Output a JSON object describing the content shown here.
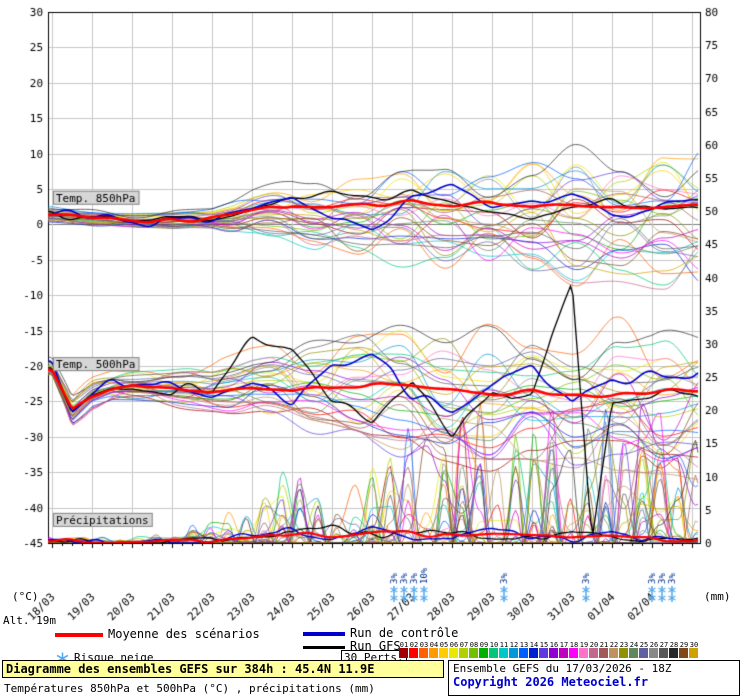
{
  "labels": {
    "unit_left": "(°C)",
    "unit_right": "(mm)",
    "altitude": "Alt. 19m"
  },
  "legend": {
    "mean_label": "Moyenne des scénarios",
    "mean_color": "#ff0000",
    "control_label": "Run de contrôle",
    "control_color": "#0000cc",
    "gfs_label": "Run GFS",
    "gfs_color": "#000000",
    "perts_label": "30 Perts.",
    "snow_label": "Risque neige",
    "snow_color": "#55aaee",
    "pert_numbers": [
      "01",
      "02",
      "03",
      "04",
      "05",
      "06",
      "07",
      "08",
      "09",
      "10",
      "11",
      "12",
      "13",
      "14",
      "15",
      "16",
      "17",
      "18",
      "19",
      "20",
      "21",
      "22",
      "23",
      "24",
      "25",
      "26",
      "27",
      "28",
      "29",
      "30"
    ],
    "pert_colors": [
      "#a00000",
      "#ff0000",
      "#ff6000",
      "#ff9900",
      "#ffcc00",
      "#e8e800",
      "#b0d000",
      "#70c000",
      "#00b000",
      "#00c878",
      "#00c8c8",
      "#0098d8",
      "#0060ff",
      "#0020d0",
      "#6038e0",
      "#9000d0",
      "#c000c0",
      "#ff00ff",
      "#ff70c8",
      "#c06890",
      "#a05858",
      "#c09060",
      "#909000",
      "#608860",
      "#6060a0",
      "#888888",
      "#585858",
      "#282828",
      "#804818",
      "#d0a000"
    ]
  },
  "footer": {
    "title": "Diagramme des ensembles GEFS sur 384h : 45.4N 11.9E",
    "subtitle": "Températures 850hPa et 500hPa (°C) , précipitations (mm)",
    "run_info": "Ensemble GEFS du 17/03/2026 - 18Z",
    "copyright": "Copyright 2026 Meteociel.fr"
  },
  "chart_data": {
    "type": "line",
    "title": "Diagramme des ensembles GEFS sur 384h : 45.4N 11.9E",
    "x_dates": [
      "18/03",
      "19/03",
      "20/03",
      "21/03",
      "22/03",
      "23/03",
      "24/03",
      "25/03",
      "26/03",
      "27/03",
      "28/03",
      "29/03",
      "30/03",
      "31/03",
      "01/04",
      "02/04"
    ],
    "x_span_hours": 384,
    "y_left": {
      "unit": "°C",
      "ticks": [
        30,
        25,
        20,
        15,
        10,
        5,
        0,
        -5,
        -10,
        -15,
        -20,
        -25,
        -30,
        -35,
        -40,
        -45
      ]
    },
    "y_right": {
      "unit": "mm",
      "ticks": [
        80,
        75,
        70,
        65,
        60,
        55,
        50,
        45,
        40,
        35,
        30,
        25,
        20,
        15,
        10,
        5,
        0
      ]
    },
    "annotations": [
      "Temp. 850hPa",
      "Temp. 500hPa",
      "Précipitations"
    ],
    "n_members": 30,
    "sampling": "values every 12h from 18/03 00h to 03/04 00h (33 anchor points)",
    "series": {
      "t850": {
        "mean": [
          1.5,
          1.2,
          0.8,
          0.9,
          0.6,
          0.4,
          0.5,
          0.7,
          0.8,
          1.2,
          1.8,
          2.4,
          2.8,
          2.4,
          2.2,
          2.6,
          2.8,
          3.0,
          3.2,
          2.8,
          2.6,
          2.8,
          3.0,
          2.8,
          2.6,
          2.8,
          3.0,
          2.6,
          2.4,
          2.2,
          2.2,
          2.4,
          2.6
        ],
        "control": [
          1.6,
          1.3,
          1.0,
          0.6,
          0.4,
          0.3,
          0.4,
          0.8,
          1.0,
          1.6,
          2.2,
          3.2,
          4.0,
          2.6,
          1.2,
          0.2,
          -0.8,
          1.4,
          3.6,
          4.4,
          5.0,
          3.6,
          2.2,
          2.6,
          3.2,
          3.8,
          4.4,
          2.8,
          1.2,
          1.6,
          2.2,
          2.6,
          3.0
        ],
        "gfs": [
          1.4,
          1.0,
          0.7,
          0.6,
          0.5,
          0.6,
          0.6,
          0.8,
          0.9,
          1.6,
          2.4,
          2.8,
          3.2,
          3.8,
          4.2,
          3.8,
          3.4,
          4.0,
          4.6,
          3.6,
          2.8,
          2.4,
          2.0,
          1.6,
          1.2,
          1.8,
          2.4,
          2.8,
          3.2,
          2.6,
          2.0,
          2.2,
          2.4
        ],
        "env_min": [
          0.5,
          0.2,
          -0.2,
          -0.4,
          -0.5,
          -0.7,
          -0.8,
          -0.6,
          -0.5,
          -1.0,
          -1.5,
          -2.0,
          -2.5,
          -3.0,
          -3.5,
          -4.0,
          -4.5,
          -4.8,
          -5.0,
          -5.2,
          -5.5,
          -5.8,
          -6.0,
          -6.2,
          -6.5,
          -6.8,
          -7.0,
          -7.2,
          -7.5,
          -7.8,
          -8.0,
          -8.0,
          -8.0
        ],
        "env_max": [
          2.5,
          2.2,
          2.0,
          1.8,
          1.6,
          1.7,
          1.8,
          2.0,
          2.2,
          3.2,
          4.5,
          5.2,
          6.0,
          6.2,
          6.5,
          6.8,
          7.0,
          7.5,
          8.0,
          8.2,
          8.5,
          8.8,
          9.0,
          9.2,
          9.5,
          9.8,
          10.0,
          10.0,
          10.0,
          10.2,
          10.5,
          10.2,
          10.0
        ]
      },
      "t500": {
        "mean": [
          -20.5,
          -26.0,
          -24.0,
          -23.0,
          -22.5,
          -22.8,
          -23.0,
          -23.2,
          -23.5,
          -23.2,
          -23.0,
          -23.2,
          -23.5,
          -23.2,
          -23.0,
          -22.8,
          -22.5,
          -22.8,
          -23.0,
          -23.2,
          -23.5,
          -23.8,
          -24.0,
          -23.8,
          -23.5,
          -23.8,
          -24.0,
          -24.0,
          -24.0,
          -23.8,
          -23.5,
          -23.5,
          -23.5
        ],
        "control": [
          -20.0,
          -26.5,
          -24.0,
          -22.5,
          -22.0,
          -22.5,
          -23.0,
          -23.5,
          -24.0,
          -23.0,
          -22.0,
          -23.5,
          -25.0,
          -22.5,
          -20.0,
          -19.2,
          -18.5,
          -21.0,
          -24.0,
          -25.0,
          -26.0,
          -24.0,
          -22.0,
          -21.0,
          -20.0,
          -22.5,
          -25.0,
          -23.5,
          -22.0,
          -21.5,
          -21.0,
          -21.0,
          -21.0
        ],
        "gfs": [
          -20.2,
          -26.2,
          -24.2,
          -23.0,
          -22.8,
          -23.0,
          -23.4,
          -23.2,
          -23.0,
          -19.5,
          -16.5,
          -17.2,
          -18.0,
          -21.5,
          -25.0,
          -26.5,
          -28.0,
          -25.0,
          -22.0,
          -26.0,
          -30.0,
          -27.0,
          -24.0,
          -25.0,
          -24.0,
          -15.0,
          -8.0,
          -44.0,
          -25.0,
          -24.5,
          -24.0,
          -24.0,
          -24.0
        ],
        "env_min": [
          -21.5,
          -29.0,
          -26.0,
          -25.0,
          -25.0,
          -25.2,
          -25.5,
          -26.0,
          -26.5,
          -27.0,
          -27.5,
          -28.0,
          -28.5,
          -29.2,
          -30.0,
          -31.0,
          -32.0,
          -32.2,
          -32.5,
          -33.0,
          -33.5,
          -33.8,
          -34.0,
          -34.2,
          -34.5,
          -34.8,
          -35.0,
          -35.0,
          -35.0,
          -35.0,
          -35.0,
          -35.0,
          -35.0
        ],
        "env_max": [
          -19.0,
          -24.0,
          -22.0,
          -21.0,
          -21.0,
          -20.8,
          -20.5,
          -20.2,
          -20.0,
          -19.0,
          -18.0,
          -17.5,
          -17.0,
          -16.5,
          -16.0,
          -15.5,
          -15.0,
          -15.0,
          -15.0,
          -15.2,
          -15.5,
          -15.8,
          -16.0,
          -15.5,
          -15.0,
          -15.5,
          -16.0,
          -15.5,
          -15.0,
          -15.5,
          -16.0,
          -15.5,
          -15.0
        ]
      },
      "precip_mm": {
        "mean": [
          0.4,
          0.4,
          0.3,
          0.2,
          0.2,
          0.2,
          0.2,
          0.3,
          0.4,
          0.7,
          1.0,
          1.2,
          1.4,
          1.2,
          1.0,
          1.4,
          1.8,
          1.6,
          1.4,
          1.2,
          1.0,
          1.2,
          1.4,
          1.2,
          1.0,
          0.9,
          0.8,
          0.9,
          1.0,
          0.8,
          0.6,
          0.5,
          0.5
        ],
        "control": [
          0.5,
          0.3,
          0.2,
          0.1,
          0.1,
          0.2,
          0.2,
          0.3,
          0.5,
          1.0,
          1.5,
          1.8,
          2.0,
          1.2,
          0.5,
          1.5,
          2.5,
          1.8,
          1.0,
          0.8,
          0.5,
          1.2,
          2.0,
          1.5,
          1.0,
          0.8,
          0.5,
          1.0,
          1.5,
          1.0,
          0.5,
          0.5,
          0.5
        ],
        "gfs": [
          0.3,
          0.2,
          0.2,
          0.1,
          0.1,
          0.2,
          0.3,
          0.5,
          0.6,
          0.9,
          1.2,
          1.4,
          1.5,
          2.0,
          2.5,
          1.8,
          1.0,
          1.5,
          2.0,
          1.8,
          1.5,
          1.2,
          1.0,
          0.8,
          0.5,
          1.0,
          1.5,
          1.2,
          1.0,
          0.8,
          0.5,
          0.5,
          0.4
        ],
        "member_max": [
          1,
          1,
          1,
          1,
          1,
          1.5,
          2,
          3,
          4,
          6,
          8,
          12,
          15,
          12,
          10,
          14,
          18,
          20,
          22,
          23,
          24,
          25,
          26,
          25,
          25,
          24,
          24,
          25,
          26,
          25,
          24,
          23,
          22
        ]
      }
    },
    "snow_risk_markers": [
      {
        "day": 8.55,
        "percent": "3%"
      },
      {
        "day": 8.8,
        "percent": "3%"
      },
      {
        "day": 9.05,
        "percent": "3%"
      },
      {
        "day": 9.3,
        "percent": "10%"
      },
      {
        "day": 11.3,
        "percent": "3%"
      },
      {
        "day": 13.35,
        "percent": "3%"
      },
      {
        "day": 15.0,
        "percent": "3%"
      },
      {
        "day": 15.25,
        "percent": "3%"
      },
      {
        "day": 15.5,
        "percent": "3%"
      }
    ]
  }
}
